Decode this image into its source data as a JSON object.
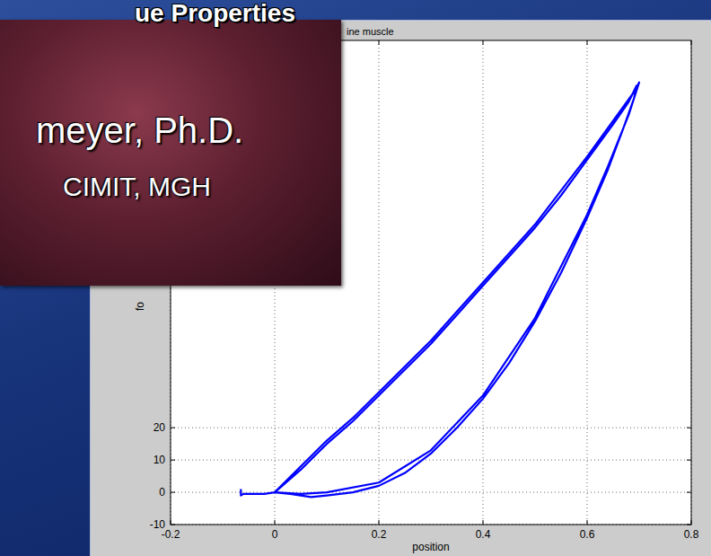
{
  "chart_data": {
    "type": "line",
    "title": "ine muscle",
    "x_label": "position",
    "y_label": "fo",
    "x": [
      -0.065,
      -0.065,
      -0.06,
      -0.04,
      -0.02,
      0,
      0.05,
      0.1,
      0.15,
      0.2,
      0.25,
      0.3,
      0.35,
      0.4,
      0.45,
      0.5,
      0.55,
      0.6,
      0.65,
      0.68,
      0.695,
      0.69,
      0.67,
      0.64,
      0.6,
      0.55,
      0.5,
      0.45,
      0.4,
      0.35,
      0.3,
      0.25,
      0.2,
      0.15,
      0.1,
      0.07,
      0.03,
      0,
      0.05,
      0.1,
      0.15,
      0.2,
      0.3,
      0.4,
      0.5,
      0.6,
      0.69,
      0.7,
      0.68,
      0.64,
      0.6,
      0.5,
      0.4,
      0.3,
      0.2,
      0.1,
      0.05,
      0
    ],
    "values": [
      1,
      -1,
      -0.5,
      -0.5,
      -0.5,
      0,
      7,
      15,
      22,
      30,
      38,
      46,
      55,
      64,
      73,
      82,
      92,
      103,
      114,
      121,
      126,
      122,
      113,
      100,
      85,
      68,
      53,
      40,
      29,
      20,
      12,
      6,
      2,
      0,
      -1,
      -1.5,
      -0.5,
      0,
      8,
      16,
      23,
      31,
      47,
      65,
      83,
      104,
      124,
      127,
      117,
      101,
      86,
      54,
      30,
      13,
      3,
      0,
      -0.5,
      0
    ],
    "color": "#0000ff",
    "line_style": "solid",
    "xlim": [
      -0.2,
      0.8
    ],
    "xticks": [
      -0.2,
      0,
      0.2,
      0.4,
      0.6,
      0.8
    ],
    "ylim": [
      -10,
      140
    ],
    "yticks": [
      -10,
      0,
      10,
      20
    ],
    "grid": true
  },
  "slide": {
    "title": "ue Properties",
    "presenter": "meyer, Ph.D.",
    "affiliation": "CIMIT, MGH"
  }
}
